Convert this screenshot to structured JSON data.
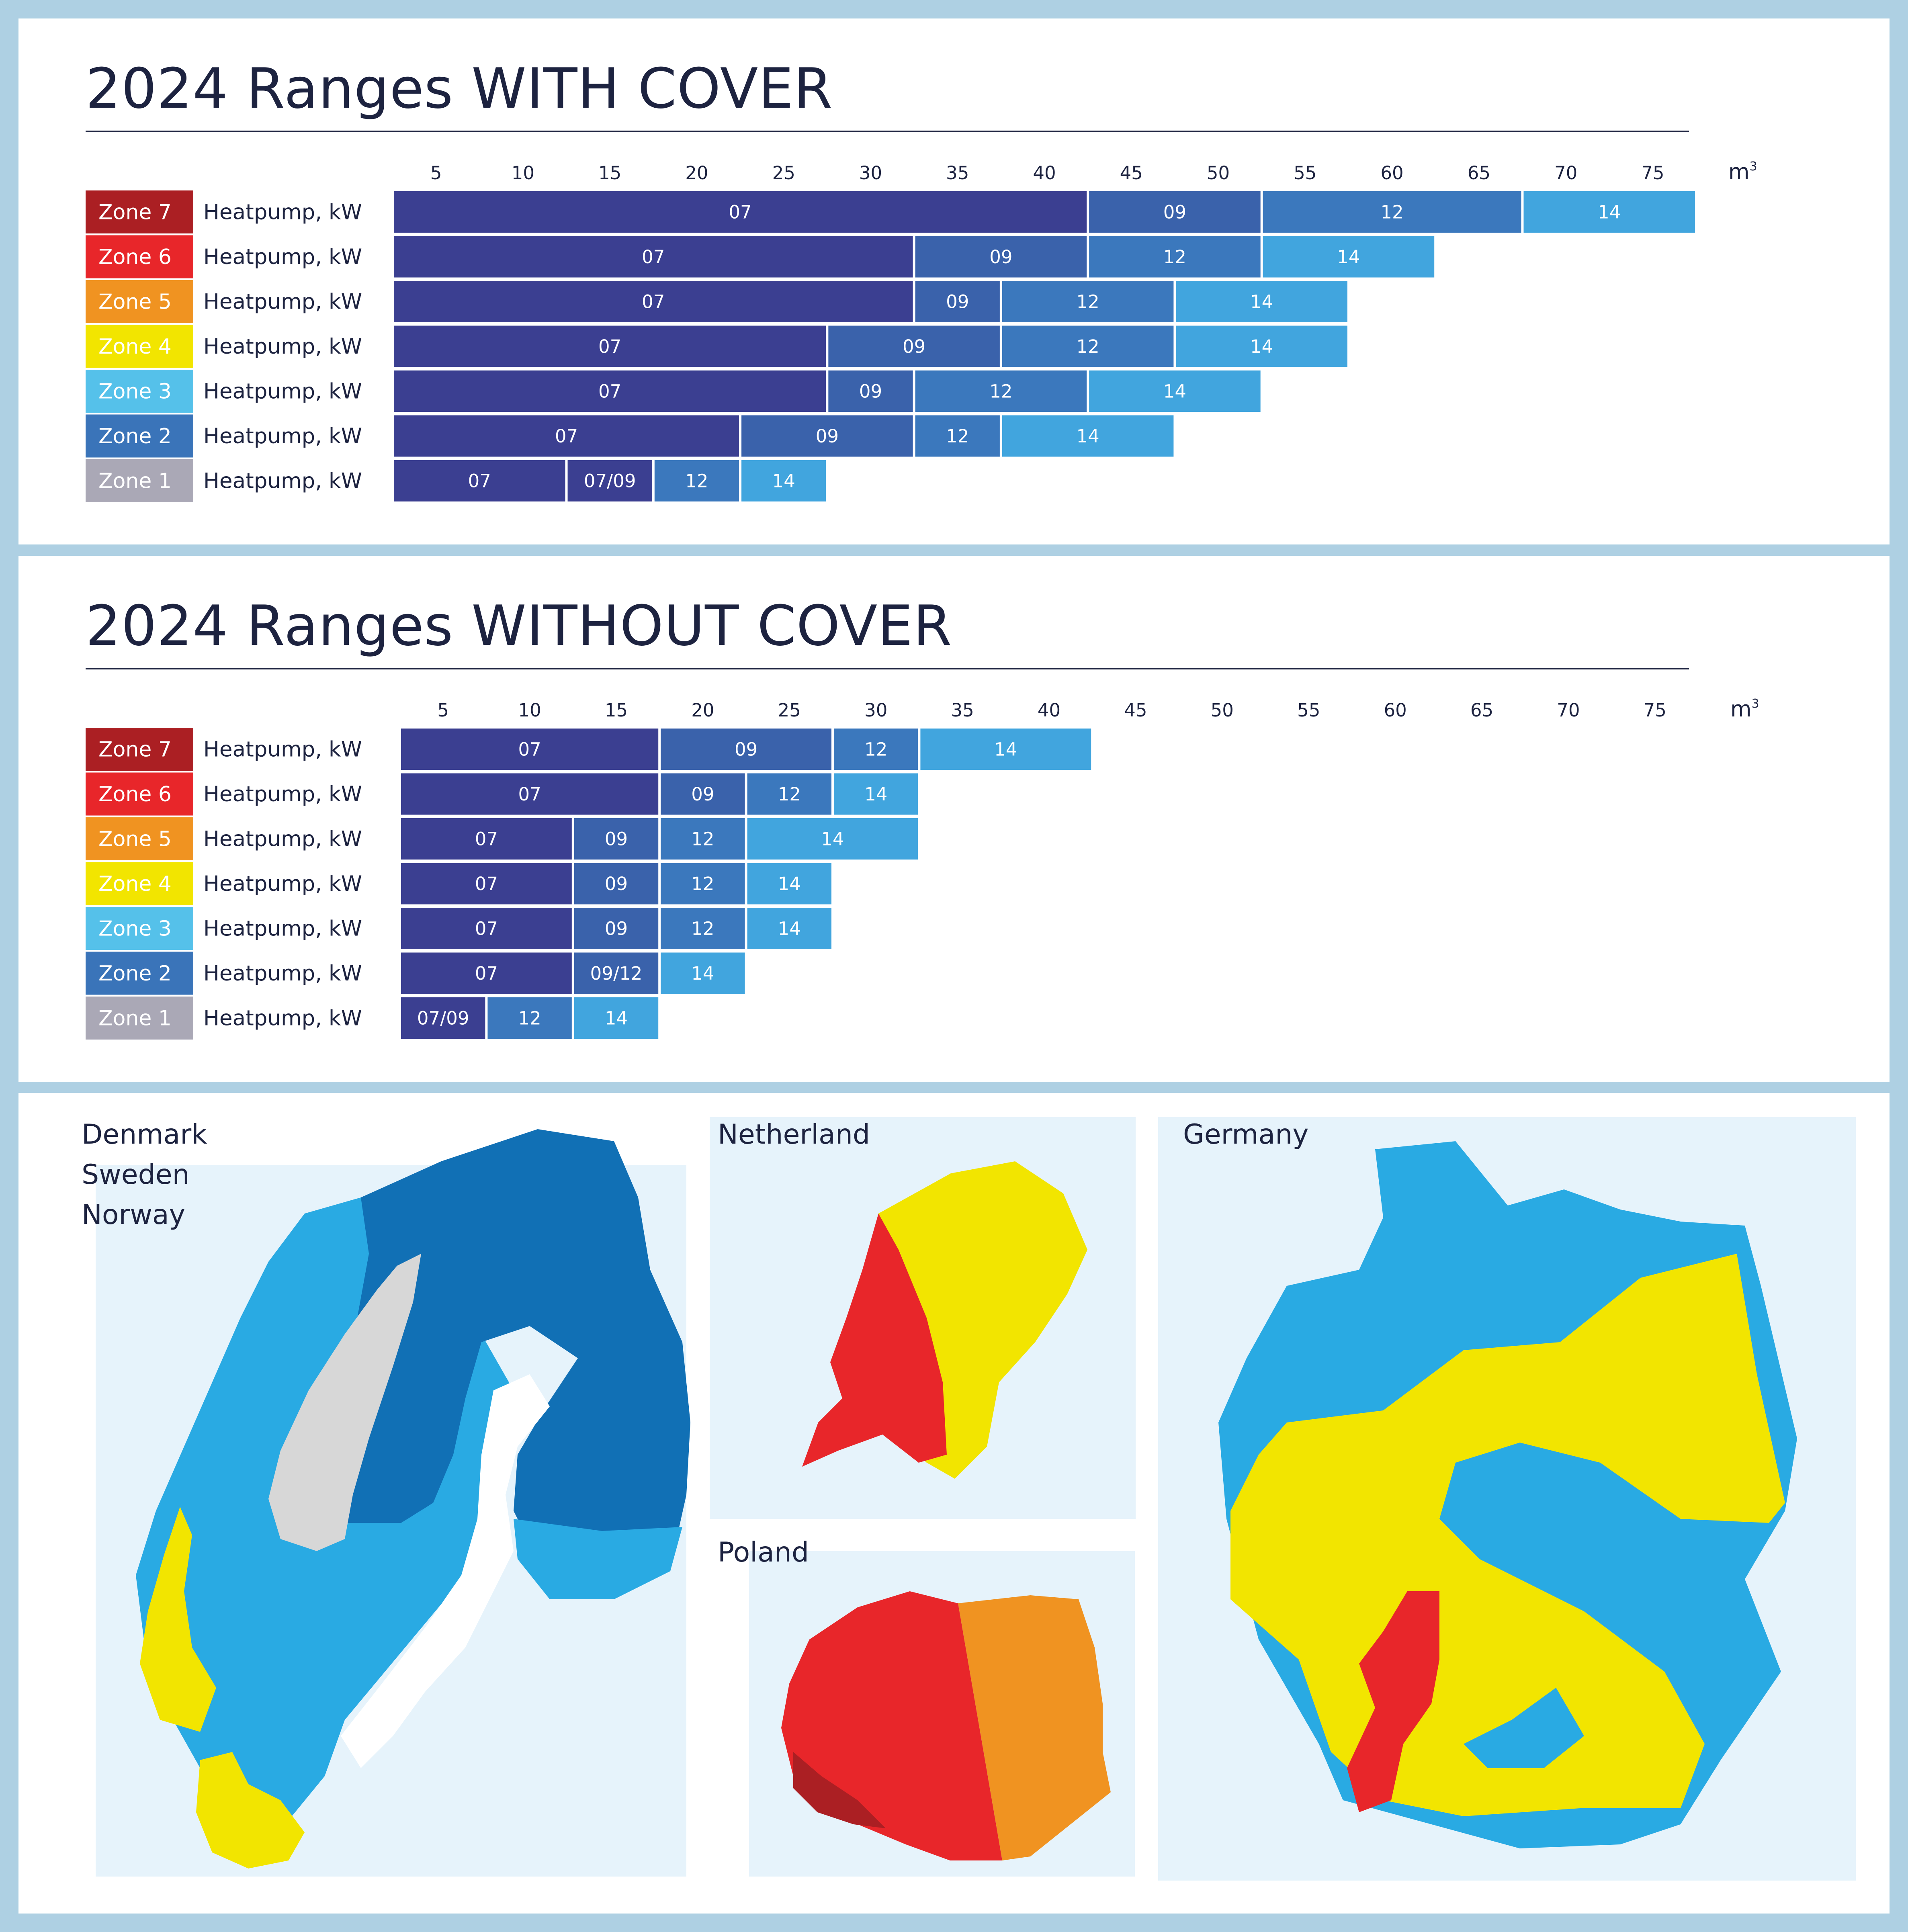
{
  "panels": {
    "with_cover": {
      "title": "2024 Ranges WITH COVER"
    },
    "without_cover": {
      "title": "2024 Ranges WITHOUT COVER"
    }
  },
  "colors": {
    "kw07": "#3b3f91",
    "kw09": "#3a62ab",
    "kw12": "#3b78bd",
    "kw14": "#41a5de",
    "zone7": "#ab1f23",
    "zone6": "#e8262a",
    "zone5": "#f09321",
    "zone4": "#f2e500",
    "zone3": "#55c1ea",
    "zone2": "#3a74b9",
    "zone1": "#aaa8b6"
  },
  "chart_data": [
    {
      "type": "bar",
      "orientation": "horizontal-stacked-ranges",
      "title": "2024 Ranges WITH COVER",
      "x_ticks": [
        5,
        10,
        15,
        20,
        25,
        30,
        35,
        40,
        45,
        50,
        55,
        60,
        65,
        70,
        75
      ],
      "x_unit": "m³",
      "row_label": "Heatpump, kW",
      "rows": [
        {
          "zone": "Zone 7",
          "segments": [
            {
              "label": "07",
              "from": 2.5,
              "to": 42.5
            },
            {
              "label": "09",
              "from": 42.5,
              "to": 52.5
            },
            {
              "label": "12",
              "from": 52.5,
              "to": 67.5
            },
            {
              "label": "14",
              "from": 67.5,
              "to": 77.5
            }
          ]
        },
        {
          "zone": "Zone 6",
          "segments": [
            {
              "label": "07",
              "from": 2.5,
              "to": 32.5
            },
            {
              "label": "09",
              "from": 32.5,
              "to": 42.5
            },
            {
              "label": "12",
              "from": 42.5,
              "to": 52.5
            },
            {
              "label": "14",
              "from": 52.5,
              "to": 62.5
            }
          ]
        },
        {
          "zone": "Zone 5",
          "segments": [
            {
              "label": "07",
              "from": 2.5,
              "to": 32.5
            },
            {
              "label": "09",
              "from": 32.5,
              "to": 37.5
            },
            {
              "label": "12",
              "from": 37.5,
              "to": 47.5
            },
            {
              "label": "14",
              "from": 47.5,
              "to": 57.5
            }
          ]
        },
        {
          "zone": "Zone 4",
          "segments": [
            {
              "label": "07",
              "from": 2.5,
              "to": 27.5
            },
            {
              "label": "09",
              "from": 27.5,
              "to": 37.5
            },
            {
              "label": "12",
              "from": 37.5,
              "to": 47.5
            },
            {
              "label": "14",
              "from": 47.5,
              "to": 57.5
            }
          ]
        },
        {
          "zone": "Zone 3",
          "segments": [
            {
              "label": "07",
              "from": 2.5,
              "to": 27.5
            },
            {
              "label": "09",
              "from": 27.5,
              "to": 32.5
            },
            {
              "label": "12",
              "from": 32.5,
              "to": 42.5
            },
            {
              "label": "14",
              "from": 42.5,
              "to": 52.5
            }
          ]
        },
        {
          "zone": "Zone 2",
          "segments": [
            {
              "label": "07",
              "from": 2.5,
              "to": 22.5
            },
            {
              "label": "09",
              "from": 22.5,
              "to": 32.5
            },
            {
              "label": "12",
              "from": 32.5,
              "to": 37.5
            },
            {
              "label": "14",
              "from": 37.5,
              "to": 47.5
            }
          ]
        },
        {
          "zone": "Zone 1",
          "segments": [
            {
              "label": "07",
              "from": 2.5,
              "to": 12.5
            },
            {
              "label": "07/09",
              "from": 12.5,
              "to": 17.5
            },
            {
              "label": "12",
              "from": 17.5,
              "to": 22.5
            },
            {
              "label": "14",
              "from": 22.5,
              "to": 27.5
            }
          ]
        }
      ]
    },
    {
      "type": "bar",
      "orientation": "horizontal-stacked-ranges",
      "title": "2024 Ranges WITHOUT COVER",
      "x_ticks": [
        5,
        10,
        15,
        20,
        25,
        30,
        35,
        40,
        45,
        50,
        55,
        60,
        65,
        70,
        75
      ],
      "x_unit": "m³",
      "row_label": "Heatpump, kW",
      "rows": [
        {
          "zone": "Zone 7",
          "segments": [
            {
              "label": "07",
              "from": 2.5,
              "to": 17.5
            },
            {
              "label": "09",
              "from": 17.5,
              "to": 27.5
            },
            {
              "label": "12",
              "from": 27.5,
              "to": 32.5
            },
            {
              "label": "14",
              "from": 32.5,
              "to": 42.5
            }
          ]
        },
        {
          "zone": "Zone 6",
          "segments": [
            {
              "label": "07",
              "from": 2.5,
              "to": 17.5
            },
            {
              "label": "09",
              "from": 17.5,
              "to": 22.5
            },
            {
              "label": "12",
              "from": 22.5,
              "to": 27.5
            },
            {
              "label": "14",
              "from": 27.5,
              "to": 32.5
            }
          ]
        },
        {
          "zone": "Zone 5",
          "segments": [
            {
              "label": "07",
              "from": 2.5,
              "to": 12.5
            },
            {
              "label": "09",
              "from": 12.5,
              "to": 17.5
            },
            {
              "label": "12",
              "from": 17.5,
              "to": 22.5
            },
            {
              "label": "14",
              "from": 22.5,
              "to": 32.5
            }
          ]
        },
        {
          "zone": "Zone 4",
          "segments": [
            {
              "label": "07",
              "from": 2.5,
              "to": 12.5
            },
            {
              "label": "09",
              "from": 12.5,
              "to": 17.5
            },
            {
              "label": "12",
              "from": 17.5,
              "to": 22.5
            },
            {
              "label": "14",
              "from": 22.5,
              "to": 27.5
            }
          ]
        },
        {
          "zone": "Zone 3",
          "segments": [
            {
              "label": "07",
              "from": 2.5,
              "to": 12.5
            },
            {
              "label": "09",
              "from": 12.5,
              "to": 17.5
            },
            {
              "label": "12",
              "from": 17.5,
              "to": 22.5
            },
            {
              "label": "14",
              "from": 22.5,
              "to": 27.5
            }
          ]
        },
        {
          "zone": "Zone 2",
          "segments": [
            {
              "label": "07",
              "from": 2.5,
              "to": 12.5
            },
            {
              "label": "09/12",
              "from": 12.5,
              "to": 17.5
            },
            {
              "label": "14",
              "from": 17.5,
              "to": 22.5
            }
          ]
        },
        {
          "zone": "Zone 1",
          "segments": [
            {
              "label": "07/09",
              "from": 2.5,
              "to": 7.5
            },
            {
              "label": "12",
              "from": 7.5,
              "to": 12.5
            },
            {
              "label": "14",
              "from": 12.5,
              "to": 17.5
            }
          ]
        }
      ]
    }
  ],
  "maps": {
    "nordics": {
      "lines": [
        "Denmark",
        "Sweden",
        "Norway"
      ]
    },
    "netherland": {
      "title": "Netherland"
    },
    "poland": {
      "title": "Poland"
    },
    "germany": {
      "title": "Germany"
    }
  }
}
